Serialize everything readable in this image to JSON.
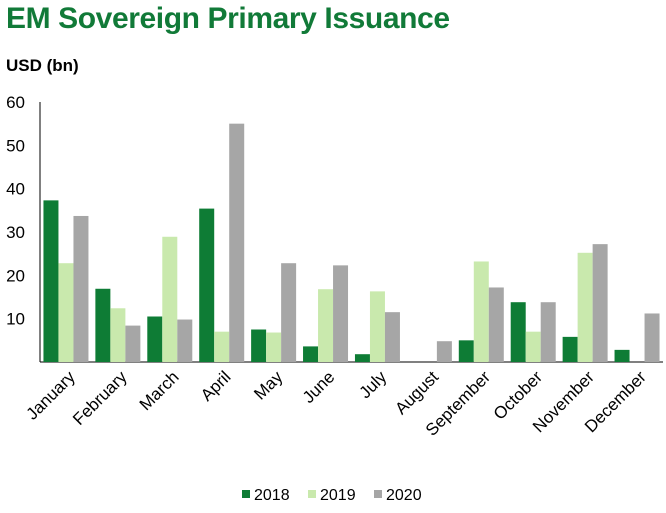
{
  "title": "EM Sovereign Primary Issuance",
  "unit_label": "USD (bn)",
  "chart_data": {
    "type": "bar",
    "title": "EM Sovereign Primary Issuance",
    "ylabel": "USD (bn)",
    "xlabel": "",
    "ylim": [
      0,
      60
    ],
    "yticks": [
      10,
      20,
      30,
      40,
      50,
      60
    ],
    "grid": false,
    "legend": "bottom",
    "categories": [
      "January",
      "February",
      "March",
      "April",
      "May",
      "June",
      "July",
      "August",
      "September",
      "October",
      "November",
      "December"
    ],
    "series": [
      {
        "name": "2018",
        "color": "#0e7c35",
        "values": [
          37.3,
          16.9,
          10.5,
          35.4,
          7.5,
          3.6,
          1.8,
          0,
          5.0,
          13.8,
          5.8,
          2.8
        ]
      },
      {
        "name": "2019",
        "color": "#c9e9ad",
        "values": [
          22.8,
          12.4,
          28.9,
          7.0,
          6.8,
          16.8,
          16.3,
          0,
          23.2,
          7.0,
          25.2,
          0
        ]
      },
      {
        "name": "2020",
        "color": "#a6a6a6",
        "values": [
          33.7,
          8.4,
          9.8,
          55.0,
          22.8,
          22.3,
          11.5,
          4.8,
          17.2,
          13.8,
          27.2,
          11.2
        ]
      }
    ]
  }
}
